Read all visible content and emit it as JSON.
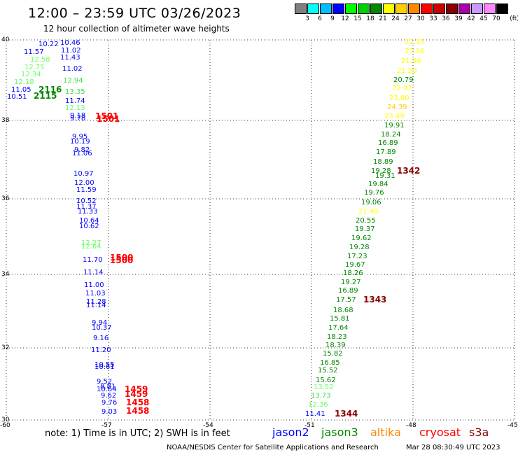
{
  "header": {
    "title": "12:00 – 23:59 UTC 03/26/2023",
    "subtitle": "12 hour collection of altimeter wave heights"
  },
  "colorbar": {
    "colors": [
      "#808080",
      "#00ffff",
      "#00bfff",
      "#0000ff",
      "#00ff00",
      "#00d000",
      "#008800",
      "#ffff00",
      "#ffd000",
      "#ff8800",
      "#ff0000",
      "#cc0000",
      "#880000",
      "#aa00aa",
      "#cc99ff",
      "#ff88ff",
      "#000000"
    ],
    "ticks": [
      "3",
      "6",
      "9",
      "12",
      "15",
      "18",
      "21",
      "24",
      "27",
      "30",
      "33",
      "36",
      "39",
      "42",
      "45",
      "70"
    ],
    "unit": "(ft)"
  },
  "axes": {
    "lon_labels": [
      "-60",
      "-57",
      "-54",
      "-51",
      "-48",
      "-45"
    ],
    "lat_labels": [
      "40",
      "38",
      "36",
      "34",
      "32",
      "30"
    ]
  },
  "swath_west": [
    {
      "t": "10.22",
      "c": "#0000ff"
    },
    {
      "t": "10.46",
      "c": "#0000ff"
    },
    {
      "t": "11.57",
      "c": "#0000ff"
    },
    {
      "t": "11.02",
      "c": "#0000ff"
    },
    {
      "t": "12.58",
      "c": "#66ff66"
    },
    {
      "t": "11.43",
      "c": "#0000ff"
    },
    {
      "t": "12.75",
      "c": "#66ff66"
    },
    {
      "t": "11.02",
      "c": "#0000ff"
    },
    {
      "t": "12.34",
      "c": "#66ff66"
    },
    {
      "t": "12.94",
      "c": "#44dd44"
    },
    {
      "t": "12.18",
      "c": "#66ff66"
    },
    {
      "t": "11.05",
      "c": "#0000ff"
    },
    {
      "t": "13.35",
      "c": "#44dd44"
    },
    {
      "t": "10.51",
      "c": "#0000ff"
    },
    {
      "t": "11.74",
      "c": "#0000ff"
    },
    {
      "t": "12.13",
      "c": "#66ff66"
    },
    {
      "t": "9.18",
      "c": "#0000ff"
    },
    {
      "t": "9.78",
      "c": "#0000ff"
    },
    {
      "t": "9.95",
      "c": "#0000ff"
    },
    {
      "t": "10.19",
      "c": "#0000ff"
    },
    {
      "t": "9.82",
      "c": "#0000ff"
    },
    {
      "t": "11.06",
      "c": "#0000ff"
    },
    {
      "t": "10.97",
      "c": "#0000ff"
    },
    {
      "t": "12.00",
      "c": "#0000ff"
    },
    {
      "t": "11.59",
      "c": "#0000ff"
    },
    {
      "t": "10.52",
      "c": "#0000ff"
    },
    {
      "t": "11.37",
      "c": "#0000ff"
    },
    {
      "t": "11.33",
      "c": "#0000ff"
    },
    {
      "t": "10.64",
      "c": "#0000ff"
    },
    {
      "t": "10.62",
      "c": "#0000ff"
    },
    {
      "t": "12.27",
      "c": "#66ff66"
    },
    {
      "t": "12.64",
      "c": "#66ff66"
    },
    {
      "t": "11.70",
      "c": "#0000ff"
    },
    {
      "t": "11.14",
      "c": "#0000ff"
    },
    {
      "t": "11.00",
      "c": "#0000ff"
    },
    {
      "t": "11.03",
      "c": "#0000ff"
    },
    {
      "t": "11.28",
      "c": "#0000ff"
    },
    {
      "t": "11.14",
      "c": "#0000ff"
    },
    {
      "t": "9.94",
      "c": "#0000ff"
    },
    {
      "t": "10.37",
      "c": "#0000ff"
    },
    {
      "t": "9.16",
      "c": "#0000ff"
    },
    {
      "t": "11.20",
      "c": "#0000ff"
    },
    {
      "t": "10.55",
      "c": "#0000ff"
    },
    {
      "t": "10.61",
      "c": "#0000ff"
    },
    {
      "t": "9.52",
      "c": "#0000ff"
    },
    {
      "t": "8.81",
      "c": "#0000ff"
    },
    {
      "t": "10.64",
      "c": "#0000ff"
    },
    {
      "t": "9.62",
      "c": "#0000ff"
    },
    {
      "t": "9.76",
      "c": "#0000ff"
    },
    {
      "t": "9.03",
      "c": "#0000ff"
    }
  ],
  "swath_east": [
    {
      "t": "22.15",
      "c": "#ffff00"
    },
    {
      "t": "23.56",
      "c": "#ffff00"
    },
    {
      "t": "21.46",
      "c": "#ffff00"
    },
    {
      "t": "21.20",
      "c": "#ffff00"
    },
    {
      "t": "20.79",
      "c": "#008800"
    },
    {
      "t": "22.97",
      "c": "#ffff00"
    },
    {
      "t": "23.60",
      "c": "#ffff00"
    },
    {
      "t": "24.39",
      "c": "#ffd000"
    },
    {
      "t": "23.49",
      "c": "#ffff00"
    },
    {
      "t": "19.91",
      "c": "#008800"
    },
    {
      "t": "18.24",
      "c": "#008800"
    },
    {
      "t": "16.89",
      "c": "#008800"
    },
    {
      "t": "17.89",
      "c": "#008800"
    },
    {
      "t": "18.89",
      "c": "#008800"
    },
    {
      "t": "19.28",
      "c": "#008800"
    },
    {
      "t": "19.31",
      "c": "#008800"
    },
    {
      "t": "19.84",
      "c": "#008800"
    },
    {
      "t": "19.76",
      "c": "#008800"
    },
    {
      "t": "19.06",
      "c": "#008800"
    },
    {
      "t": "21.40",
      "c": "#ffff00"
    },
    {
      "t": "20.55",
      "c": "#008800"
    },
    {
      "t": "19.37",
      "c": "#008800"
    },
    {
      "t": "19.62",
      "c": "#008800"
    },
    {
      "t": "19.28",
      "c": "#008800"
    },
    {
      "t": "17.23",
      "c": "#008800"
    },
    {
      "t": "19.67",
      "c": "#008800"
    },
    {
      "t": "18.26",
      "c": "#008800"
    },
    {
      "t": "19.27",
      "c": "#008800"
    },
    {
      "t": "16.89",
      "c": "#008800"
    },
    {
      "t": "17.57",
      "c": "#008800"
    },
    {
      "t": "18.68",
      "c": "#008800"
    },
    {
      "t": "15.81",
      "c": "#008800"
    },
    {
      "t": "17.64",
      "c": "#008800"
    },
    {
      "t": "18.23",
      "c": "#008800"
    },
    {
      "t": "18.39",
      "c": "#008800"
    },
    {
      "t": "15.82",
      "c": "#008800"
    },
    {
      "t": "16.85",
      "c": "#008800"
    },
    {
      "t": "15.52",
      "c": "#008800"
    },
    {
      "t": "15.62",
      "c": "#008800"
    },
    {
      "t": "13.52",
      "c": "#66ff66"
    },
    {
      "t": "13.73",
      "c": "#44dd44"
    },
    {
      "t": "12.36",
      "c": "#66ff66"
    },
    {
      "t": "11.41",
      "c": "#0000ff"
    }
  ],
  "times": [
    {
      "t": "2116",
      "c": "#008800"
    },
    {
      "t": "2115",
      "c": "#008800"
    },
    {
      "t": "1501",
      "c": "#ff0000"
    },
    {
      "t": "1501",
      "c": "#ff0000"
    },
    {
      "t": "1500",
      "c": "#ff0000"
    },
    {
      "t": "1500",
      "c": "#ff0000"
    },
    {
      "t": "1459",
      "c": "#ff0000"
    },
    {
      "t": "1459",
      "c": "#ff0000"
    },
    {
      "t": "1458",
      "c": "#ff0000"
    },
    {
      "t": "1458",
      "c": "#ff0000"
    },
    {
      "t": "1342",
      "c": "#880000"
    },
    {
      "t": "1343",
      "c": "#880000"
    },
    {
      "t": "1344",
      "c": "#880000"
    }
  ],
  "note": "note:  1) Time is in UTC;  2) SWH is in feet",
  "legend": [
    {
      "label": "jason2",
      "color": "#0000ff"
    },
    {
      "label": "jason3",
      "color": "#008800"
    },
    {
      "label": "altika",
      "color": "#ff8800"
    },
    {
      "label": "cryosat",
      "color": "#ff0000"
    },
    {
      "label": "s3a",
      "color": "#880000"
    }
  ],
  "footer": "NOAA/NESDIS Center for Satellite Applications and Research",
  "timestamp": "Mar 28 08:30:49 UTC 2023"
}
